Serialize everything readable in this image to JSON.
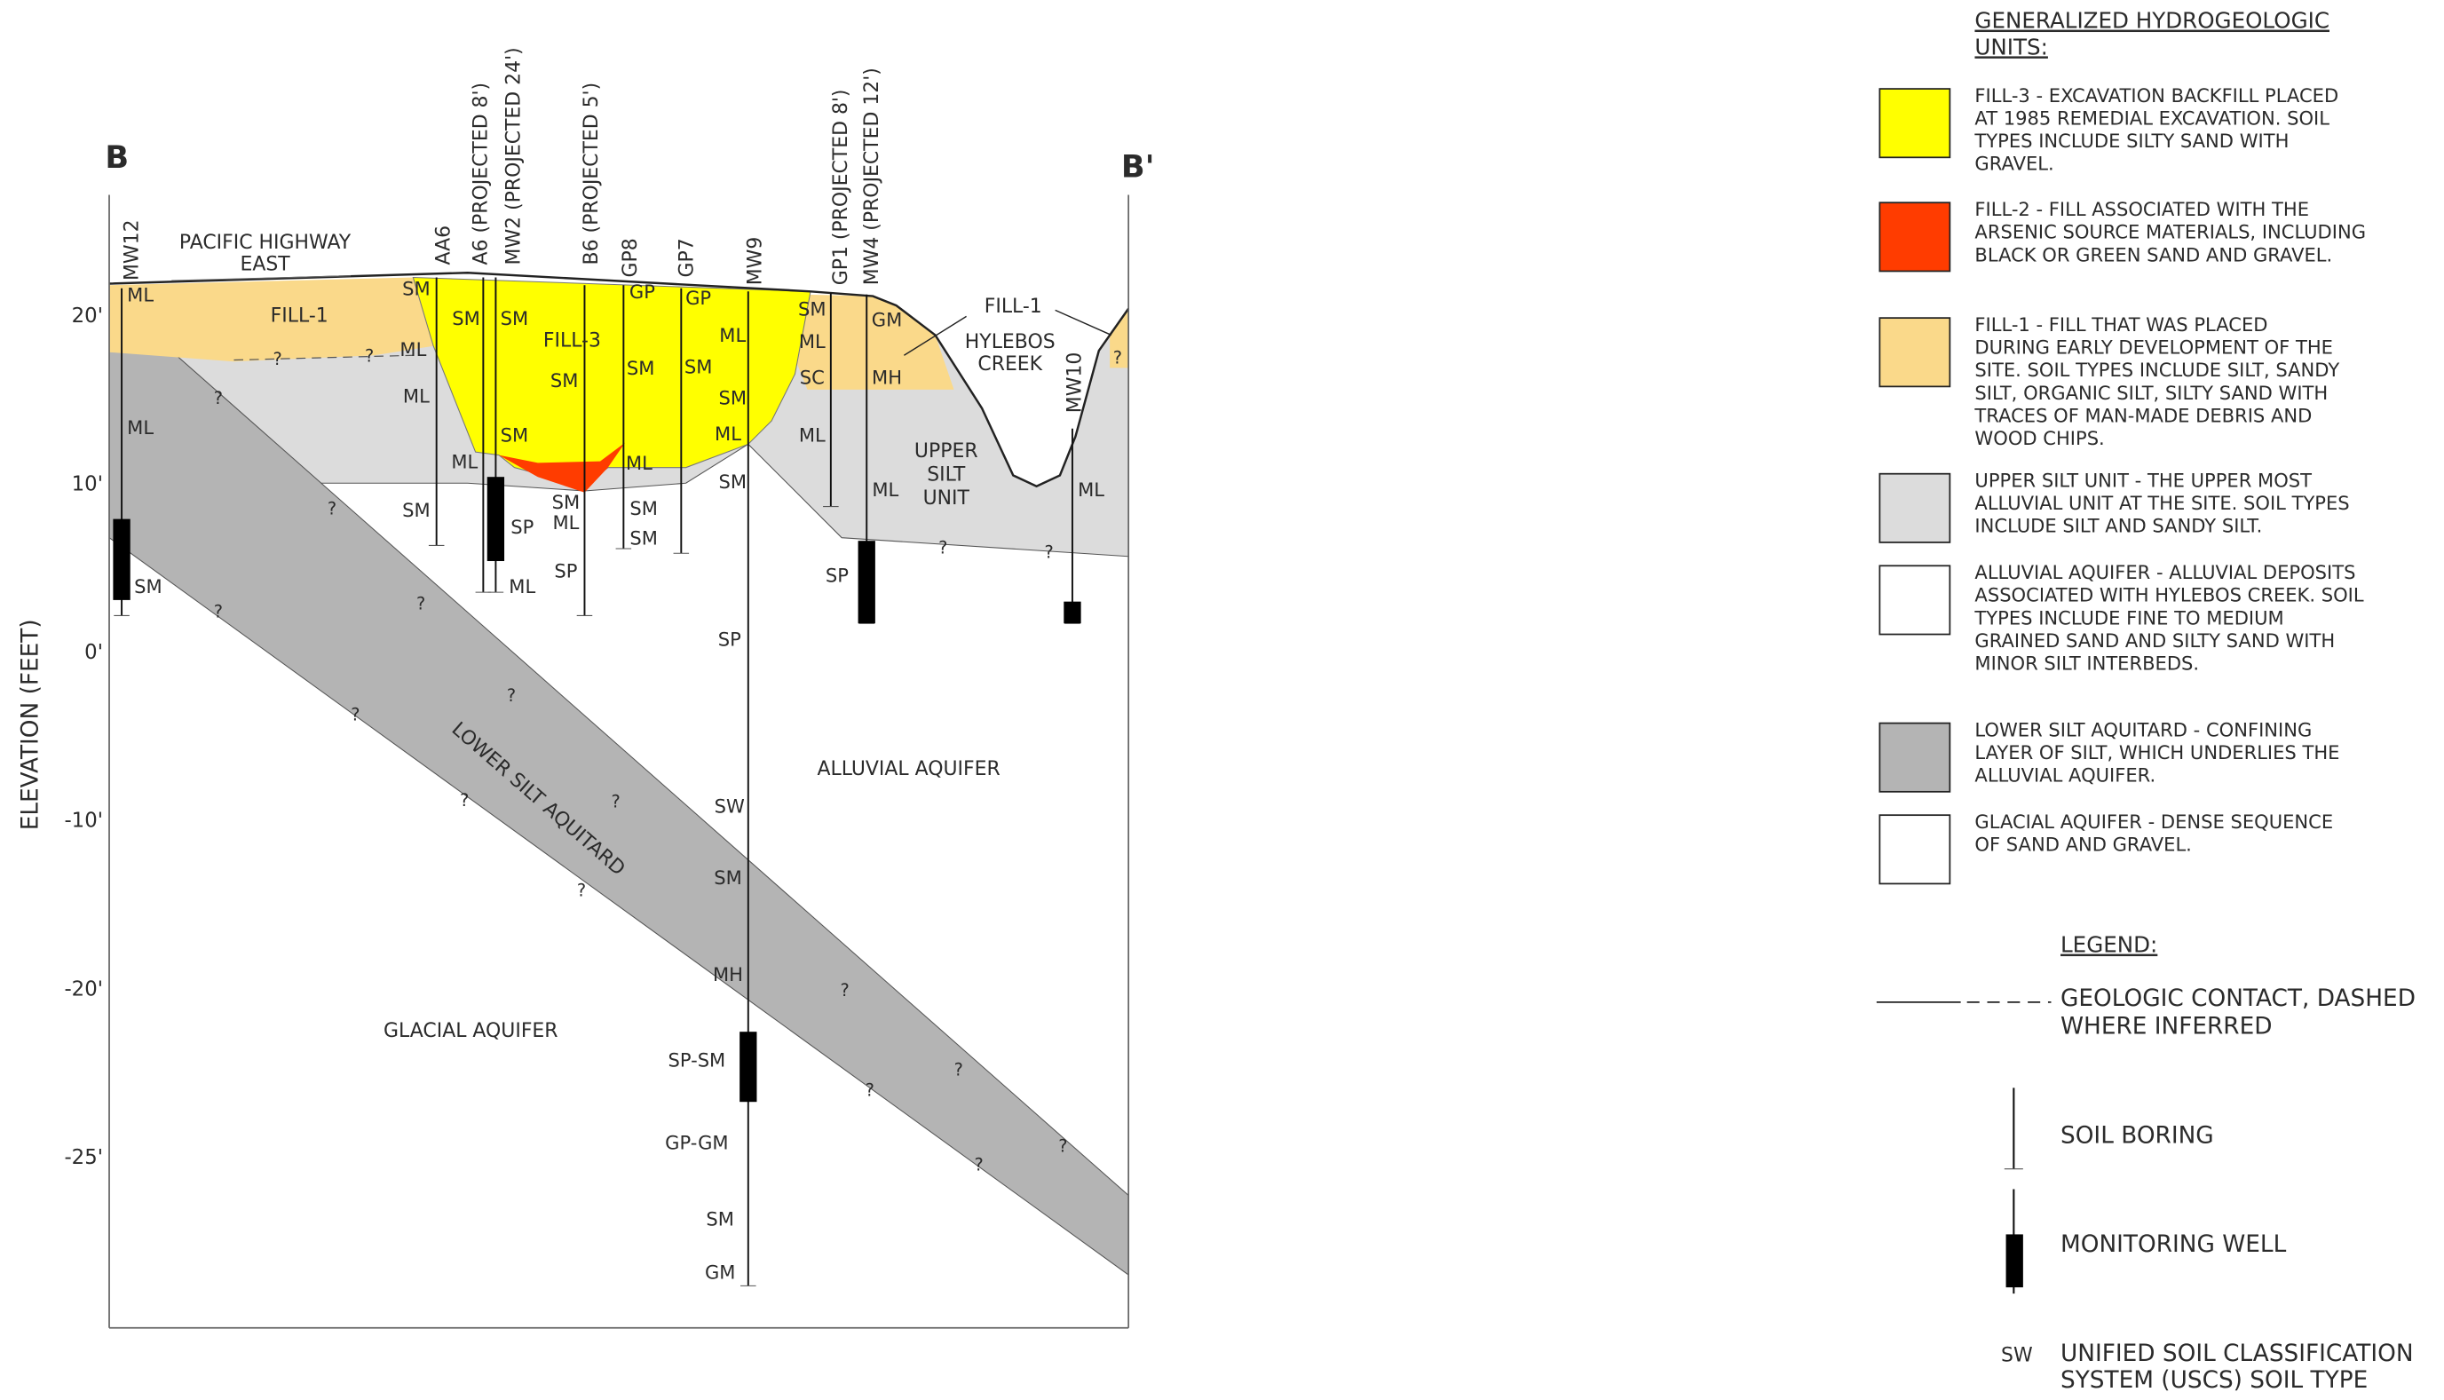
{
  "section": {
    "start_label": "B",
    "end_label": "B'"
  },
  "axis": {
    "title": "ELEVATION (FEET)",
    "ticks": [
      "20'",
      "10'",
      "0'",
      "-10'",
      "-20'",
      "-25'"
    ]
  },
  "borings": [
    "MW12",
    "AA6",
    "A6 (PROJECTED 8')",
    "MW2 (PROJECTED 24')",
    "B6 (PROJECTED 5')",
    "GP8",
    "GP7",
    "MW9",
    "GP1 (PROJECTED 8')",
    "MW4 (PROJECTED 12')",
    "MW10"
  ],
  "soil_types": [
    "ML",
    "ML",
    "SM",
    "SM",
    "ML",
    "ML",
    "SM",
    "ML",
    "SM",
    "SM",
    "SM",
    "SP",
    "ML",
    "SM",
    "SM",
    "ML",
    "SP",
    "GP",
    "GP",
    "SM",
    "ML",
    "SM",
    "SM",
    "SM",
    "ML",
    "SM",
    "ML",
    "SM",
    "SP",
    "SW",
    "SM",
    "MH",
    "SP-SM",
    "GP-GM",
    "SM",
    "GM",
    "SM",
    "ML",
    "SC",
    "ML",
    "GM",
    "MH",
    "ML",
    "SP",
    "ML"
  ],
  "inferred_marks": [
    "?",
    "?",
    "?",
    "?",
    "?",
    "?",
    "?",
    "?",
    "?",
    "?",
    "?",
    "?",
    "?",
    "?",
    "?",
    "?",
    "?",
    "?",
    "?"
  ],
  "units": [
    {
      "lines": [
        "PACIFIC HIGHWAY",
        "EAST"
      ]
    },
    {
      "lines": [
        "FILL-1"
      ]
    },
    {
      "lines": [
        "FILL-3"
      ]
    },
    {
      "lines": [
        "FILL-1"
      ]
    },
    {
      "lines": [
        "HYLEBOS",
        "CREEK"
      ]
    },
    {
      "lines": [
        "UPPER",
        "SILT",
        "UNIT"
      ]
    },
    {
      "lines": [
        "ALLUVIAL AQUIFER"
      ]
    },
    {
      "lines": [
        "GLACIAL AQUIFER"
      ]
    },
    {
      "lines": [
        "LOWER SILT AQUITARD"
      ]
    }
  ],
  "hydrogeologic_units": {
    "title_lines": [
      "GENERALIZED HYDROGEOLOGIC",
      "UNITS:"
    ],
    "items": [
      {
        "color": "#ffff00",
        "lines": [
          "FILL-3 - EXCAVATION BACKFILL PLACED",
          "AT 1985 REMEDIAL EXCAVATION. SOIL",
          "TYPES INCLUDE SILTY SAND WITH",
          "GRAVEL."
        ]
      },
      {
        "color": "#ff3c00",
        "lines": [
          "FILL-2 - FILL ASSOCIATED WITH THE",
          "ARSENIC SOURCE MATERIALS, INCLUDING",
          "BLACK OR GREEN SAND AND GRAVEL."
        ]
      },
      {
        "color": "#fad98a",
        "lines": [
          "FILL-1 - FILL THAT WAS PLACED",
          "DURING EARLY DEVELOPMENT OF THE",
          "SITE. SOIL TYPES INCLUDE SILT, SANDY",
          "SILT, ORGANIC SILT, SILTY SAND WITH",
          "TRACES OF MAN-MADE DEBRIS AND",
          "WOOD CHIPS."
        ]
      },
      {
        "color": "#dcdcdc",
        "lines": [
          "UPPER SILT UNIT - THE UPPER MOST",
          "ALLUVIAL UNIT AT THE SITE. SOIL TYPES",
          "INCLUDE SILT AND SANDY SILT."
        ]
      },
      {
        "color": "#ffffff",
        "lines": [
          "ALLUVIAL AQUIFER - ALLUVIAL DEPOSITS",
          "ASSOCIATED WITH HYLEBOS CREEK. SOIL",
          "TYPES INCLUDE FINE TO MEDIUM",
          "GRAINED SAND AND SILTY SAND WITH",
          "MINOR SILT INTERBEDS."
        ]
      },
      {
        "color": "#b4b4b4",
        "lines": [
          "LOWER SILT AQUITARD - CONFINING",
          "LAYER OF SILT, WHICH UNDERLIES THE",
          "ALLUVIAL AQUIFER."
        ]
      },
      {
        "color": "#ffffff",
        "lines": [
          "GLACIAL AQUIFER - DENSE SEQUENCE",
          "OF SAND AND GRAVEL."
        ]
      }
    ]
  },
  "legend": {
    "title": "LEGEND:",
    "contact": {
      "lines": [
        "GEOLOGIC CONTACT, DASHED",
        "WHERE INFERRED"
      ]
    },
    "soil_boring": "SOIL BORING",
    "monitoring_well": "MONITORING WELL",
    "uscs": {
      "code": "SW",
      "lines": [
        "UNIFIED SOIL CLASSIFICATION",
        "SYSTEM (USCS) SOIL TYPE"
      ]
    }
  }
}
